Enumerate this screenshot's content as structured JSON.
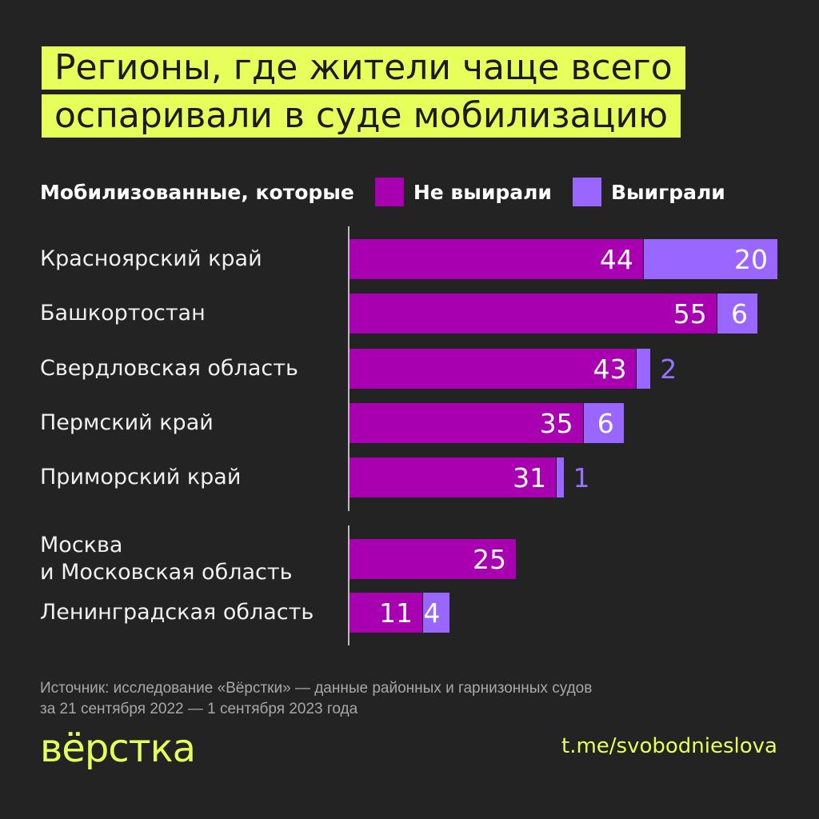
{
  "title": [
    "Регионы, где жители чаще всего",
    "оспаривали в суде мобилизацию"
  ],
  "legend": {
    "prefix": "Мобилизованные, которые",
    "items": [
      "Не выирали",
      "Выиграли"
    ]
  },
  "colors": {
    "lost": "#a800b0",
    "won": "#9966ff",
    "accent": "#e6ff5a",
    "background": "#232323"
  },
  "chart_data": {
    "type": "bar",
    "orientation": "horizontal",
    "stacked": true,
    "categories": [
      "Красноярский край",
      "Башкортостан",
      "Свердловская область",
      "Пермский край",
      "Приморский край",
      "Москва\nи Московская область",
      "Ленинградская область"
    ],
    "series": [
      {
        "name": "Не выирали",
        "values": [
          44,
          55,
          43,
          35,
          31,
          25,
          11
        ]
      },
      {
        "name": "Выиграли",
        "values": [
          20,
          6,
          2,
          6,
          1,
          0,
          4
        ]
      }
    ],
    "legend_position": "top",
    "grid": false
  },
  "source": [
    "Источник: исследование «Вёрстки»  — данные районных и гарнизонных судов",
    "за 21 сентября 2022 — 1 сентября 2023 года"
  ],
  "logo": "вёрстка",
  "link": "t.me/svobodnieslova"
}
